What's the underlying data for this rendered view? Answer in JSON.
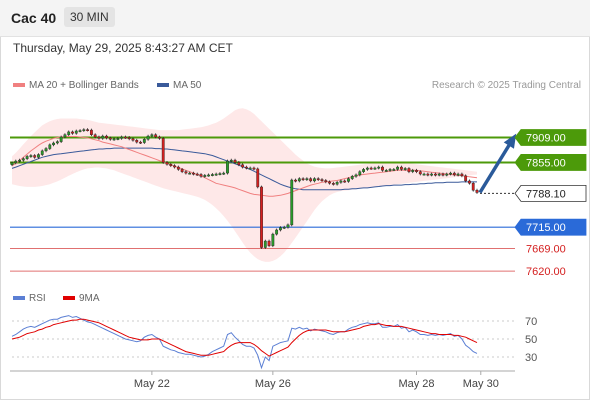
{
  "header": {
    "title": "Cac 40",
    "timeframe": "30 MIN"
  },
  "datetime": "Thursday, May 29, 2025 8:43:27 AM CET",
  "legend": {
    "bollinger": "MA 20 + Bollinger Bands",
    "ma50": "MA 50",
    "rsi": "RSI",
    "rsi_ma": "9MA"
  },
  "copyright": "Research © 2025 Trading Central",
  "colors": {
    "up": "#2a9a2a",
    "down": "#d42020",
    "ma20": "#f08080",
    "band": "#fde0e0",
    "ma50": "#3a5a9a",
    "resistance": "#4c9a0a",
    "support": "#2a6ad8",
    "target": "#e07070",
    "rsi": "#5b7fd4",
    "rsi_ma": "#e00000",
    "arrow": "#2a5a9a"
  },
  "chart_data": [
    {
      "type": "candlestick",
      "title": "Cac 40",
      "ylim": [
        7590,
        7990
      ],
      "levels": [
        {
          "value": 7909.0,
          "label": "7909.00",
          "kind": "resistance"
        },
        {
          "value": 7855.0,
          "label": "7855.00",
          "kind": "resistance"
        },
        {
          "value": 7788.1,
          "label": "7788.10",
          "kind": "last"
        },
        {
          "value": 7715.0,
          "label": "7715.00",
          "kind": "support"
        },
        {
          "value": 7669.0,
          "label": "7669.00",
          "kind": "target"
        },
        {
          "value": 7620.0,
          "label": "7620.00",
          "kind": "target"
        }
      ],
      "x_ticks": [
        {
          "label": "May 22",
          "index": 37
        },
        {
          "label": "May 26",
          "index": 69
        },
        {
          "label": "May 28",
          "index": 107
        },
        {
          "label": "May 30",
          "index": 124
        }
      ],
      "series": [
        {
          "name": "MA 20",
          "values": [
            7848,
            7853,
            7859,
            7866,
            7873,
            7880,
            7886,
            7892,
            7897,
            7901,
            7904,
            7907,
            7909,
            7910,
            7911,
            7911,
            7911,
            7911,
            7910,
            7909,
            7908,
            7906,
            7904,
            7902,
            7899,
            7897,
            7895,
            7893,
            7891,
            7889,
            7886,
            7883,
            7880,
            7877,
            7874,
            7871,
            7868,
            7865,
            7862,
            7859,
            7856,
            7853,
            7850,
            7847,
            7844,
            7841,
            7838,
            7835,
            7832,
            7829,
            7826,
            7822,
            7818,
            7814,
            7810,
            7808,
            7806,
            7804,
            7802,
            7800,
            7797,
            7794,
            7791,
            7788,
            7786,
            7785,
            7784,
            7783,
            7782,
            7782,
            7783,
            7784,
            7786,
            7788,
            7791,
            7794,
            7797,
            7800,
            7803,
            7806,
            7808,
            7810,
            7812,
            7813,
            7814,
            7815,
            7816,
            7818,
            7820,
            7822,
            7824,
            7826,
            7828,
            7829,
            7830,
            7831,
            7832,
            7833,
            7834,
            7835,
            7836,
            7837,
            7838,
            7838,
            7838,
            7838,
            7838,
            7838,
            7837,
            7836,
            7835,
            7834,
            7833,
            7832,
            7831,
            7830,
            7829,
            7828,
            7827,
            7826,
            7825,
            7824,
            7823,
            7822
          ]
        },
        {
          "name": "MA 50",
          "values": [
            7842,
            7845,
            7848,
            7851,
            7854,
            7857,
            7860,
            7863,
            7866,
            7868,
            7870,
            7872,
            7873,
            7874,
            7875,
            7876,
            7877,
            7878,
            7879,
            7880,
            7881,
            7882,
            7883,
            7884,
            7884,
            7885,
            7885,
            7886,
            7886,
            7886,
            7886,
            7886,
            7886,
            7886,
            7886,
            7886,
            7886,
            7886,
            7885,
            7885,
            7884,
            7884,
            7883,
            7882,
            7881,
            7880,
            7879,
            7878,
            7877,
            7876,
            7875,
            7874,
            7872,
            7870,
            7867,
            7864,
            7861,
            7858,
            7855,
            7852,
            7849,
            7846,
            7843,
            7840,
            7836,
            7832,
            7828,
            7824,
            7820,
            7816,
            7812,
            7808,
            7805,
            7802,
            7800,
            7798,
            7797,
            7796,
            7796,
            7796,
            7796,
            7796,
            7796,
            7796,
            7796,
            7796,
            7796,
            7796,
            7797,
            7797,
            7798,
            7798,
            7799,
            7800,
            7800,
            7801,
            7802,
            7803,
            7804,
            7805,
            7805,
            7806,
            7806,
            7806,
            7807,
            7807,
            7808,
            7808,
            7809,
            7809,
            7810,
            7810,
            7811,
            7811,
            7811,
            7812,
            7812,
            7812,
            7812,
            7813,
            7813,
            7813,
            7813,
            7813
          ]
        },
        {
          "name": "Bollinger Upper",
          "values": [
            7868,
            7876,
            7885,
            7894,
            7903,
            7912,
            7920,
            7928,
            7935,
            7940,
            7944,
            7947,
            7949,
            7950,
            7950,
            7950,
            7950,
            7950,
            7949,
            7948,
            7947,
            7945,
            7943,
            7941,
            7940,
            7939,
            7938,
            7937,
            7936,
            7935,
            7934,
            7933,
            7932,
            7931,
            7930,
            7929,
            7928,
            7927,
            7926,
            7925,
            7925,
            7925,
            7925,
            7925,
            7925,
            7926,
            7927,
            7928,
            7929,
            7930,
            7931,
            7933,
            7935,
            7938,
            7941,
            7945,
            7950,
            7956,
            7962,
            7968,
            7971,
            7972,
            7970,
            7966,
            7960,
            7952,
            7944,
            7936,
            7928,
            7920,
            7912,
            7904,
            7896,
            7888,
            7880,
            7872,
            7865,
            7859,
            7853,
            7849,
            7846,
            7844,
            7843,
            7842,
            7842,
            7843,
            7844,
            7845,
            7846,
            7847,
            7848,
            7849,
            7850,
            7851,
            7852,
            7853,
            7854,
            7855,
            7856,
            7857,
            7857,
            7857,
            7856,
            7855,
            7854,
            7853,
            7852,
            7851,
            7850,
            7849,
            7848,
            7847,
            7846,
            7845,
            7844,
            7843,
            7842,
            7841,
            7840,
            7839,
            7838,
            7837,
            7836,
            7835
          ]
        },
        {
          "name": "Bollinger Lower",
          "values": [
            7808,
            7806,
            7804,
            7803,
            7802,
            7802,
            7802,
            7803,
            7804,
            7806,
            7808,
            7811,
            7814,
            7818,
            7822,
            7826,
            7830,
            7834,
            7837,
            7840,
            7842,
            7843,
            7844,
            7844,
            7843,
            7842,
            7840,
            7838,
            7835,
            7832,
            7829,
            7826,
            7823,
            7820,
            7817,
            7814,
            7811,
            7808,
            7805,
            7802,
            7799,
            7797,
            7795,
            7793,
            7791,
            7789,
            7787,
            7785,
            7783,
            7781,
            7778,
            7774,
            7769,
            7763,
            7756,
            7748,
            7739,
            7729,
            7718,
            7706,
            7694,
            7682,
            7670,
            7660,
            7652,
            7646,
            7642,
            7640,
            7640,
            7642,
            7646,
            7652,
            7660,
            7670,
            7681,
            7692,
            7704,
            7716,
            7728,
            7740,
            7752,
            7762,
            7771,
            7778,
            7784,
            7788,
            7791,
            7793,
            7794,
            7795,
            7796,
            7797,
            7798,
            7799,
            7800,
            7801,
            7802,
            7803,
            7804,
            7805,
            7806,
            7807,
            7808,
            7809,
            7810,
            7811,
            7812,
            7813,
            7814,
            7815,
            7816,
            7817,
            7818,
            7819,
            7820,
            7821,
            7822,
            7823,
            7824,
            7825,
            7826,
            7827,
            7828,
            7829
          ]
        },
        {
          "name": "Close",
          "values": [
            7854,
            7858,
            7860,
            7863,
            7868,
            7870,
            7866,
            7872,
            7880,
            7885,
            7893,
            7897,
            7900,
            7910,
            7915,
            7921,
            7918,
            7923,
            7924,
            7926,
            7925,
            7915,
            7910,
            7907,
            7912,
            7908,
            7905,
            7906,
            7907,
            7910,
            7909,
            7906,
            7903,
            7899,
            7898,
            7905,
            7912,
            7915,
            7910,
            7907,
            7855,
            7851,
            7848,
            7845,
            7840,
            7835,
            7832,
            7832,
            7830,
            7829,
            7825,
            7827,
            7828,
            7829,
            7830,
            7831,
            7832,
            7858,
            7860,
            7855,
            7850,
            7845,
            7843,
            7843,
            7841,
            7802,
            7671,
            7685,
            7675,
            7700,
            7709,
            7714,
            7715,
            7720,
            7817,
            7815,
            7820,
            7818,
            7820,
            7815,
            7820,
            7818,
            7816,
            7813,
            7810,
            7808,
            7812,
            7815,
            7814,
            7820,
            7825,
            7828,
            7835,
            7840,
            7843,
            7842,
            7843,
            7845,
            7838,
            7838,
            7840,
            7840,
            7845,
            7840,
            7842,
            7835,
            7838,
            7835,
            7830,
            7830,
            7828,
            7830,
            7828,
            7830,
            7828,
            7830,
            7832,
            7828,
            7830,
            7826,
            7815,
            7810,
            7795,
            7790
          ]
        }
      ]
    },
    {
      "type": "line",
      "title": "RSI",
      "ylim": [
        20,
        80
      ],
      "y_ticks": [
        70,
        50,
        30
      ],
      "series": [
        {
          "name": "RSI",
          "values": [
            53,
            55,
            58,
            61,
            63,
            64,
            63,
            65,
            67,
            69,
            71,
            72,
            72,
            74,
            75,
            76,
            74,
            75,
            73,
            71,
            69,
            68,
            66,
            64,
            62,
            60,
            58,
            56,
            54,
            52,
            50,
            49,
            48,
            47,
            48,
            52,
            54,
            55,
            52,
            50,
            42,
            40,
            38,
            37,
            35,
            34,
            33,
            33,
            32,
            31,
            30,
            31,
            33,
            36,
            38,
            40,
            42,
            55,
            57,
            52,
            48,
            44,
            42,
            42,
            40,
            32,
            18,
            30,
            26,
            42,
            44,
            46,
            47,
            48,
            62,
            61,
            63,
            61,
            62,
            59,
            61,
            60,
            59,
            58,
            56,
            55,
            57,
            58,
            58,
            61,
            63,
            64,
            66,
            67,
            68,
            67,
            67,
            68,
            63,
            63,
            64,
            64,
            66,
            62,
            63,
            58,
            60,
            58,
            55,
            55,
            54,
            55,
            54,
            55,
            54,
            55,
            56,
            53,
            54,
            50,
            43,
            40,
            36,
            34
          ]
        },
        {
          "name": "9MA",
          "values": [
            50,
            51,
            52,
            54,
            56,
            57,
            58,
            60,
            61,
            63,
            64,
            66,
            67,
            68,
            69,
            70,
            71,
            71,
            72,
            72,
            71,
            70,
            69,
            68,
            66,
            64,
            62,
            60,
            58,
            56,
            54,
            52,
            51,
            50,
            49,
            49,
            49,
            50,
            50,
            50,
            48,
            46,
            44,
            42,
            40,
            38,
            36,
            35,
            34,
            33,
            32,
            32,
            32,
            33,
            34,
            35,
            36,
            40,
            43,
            45,
            46,
            46,
            46,
            46,
            44,
            41,
            37,
            34,
            31,
            33,
            35,
            37,
            39,
            41,
            46,
            50,
            54,
            57,
            59,
            60,
            60,
            60,
            60,
            60,
            59,
            58,
            58,
            58,
            58,
            59,
            60,
            61,
            62,
            64,
            65,
            66,
            66,
            67,
            66,
            65,
            65,
            64,
            64,
            64,
            63,
            62,
            61,
            60,
            59,
            58,
            57,
            56,
            56,
            55,
            55,
            55,
            55,
            54,
            54,
            53,
            52,
            50,
            48,
            46
          ]
        }
      ]
    }
  ]
}
